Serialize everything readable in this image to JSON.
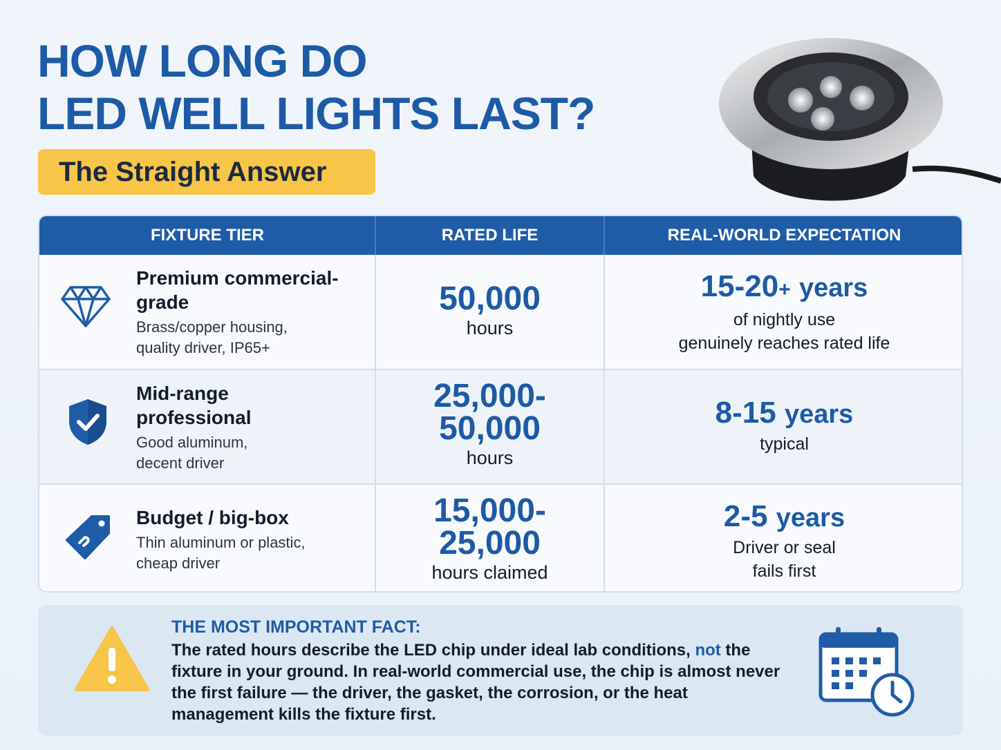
{
  "header": {
    "title_lines": [
      "HOW LONG DO",
      "LED WELL LIGHTS LAST?"
    ],
    "badge": "The Straight Answer"
  },
  "table": {
    "columns": [
      "FIXTURE TIER",
      "RATED LIFE",
      "REAL-WORLD EXPECTATION"
    ],
    "rows": [
      {
        "tier": "Premium commercial-grade",
        "description": "Brass/copper housing, quality driver, IP65+",
        "rated_lines": [
          "50,000"
        ],
        "rated_unit": "hours",
        "headline": "15-20",
        "headline_plus": "+",
        "headline_unit": "years",
        "notes": [
          "of nightly use",
          "genuinely reaches rated life"
        ]
      },
      {
        "tier": "Mid-range professional",
        "description": "Good aluminum, decent driver",
        "rated_lines": [
          "25,000-",
          "50,000"
        ],
        "rated_unit": "hours",
        "headline": "8-15",
        "headline_unit": "years",
        "notes": [
          "typical"
        ]
      },
      {
        "tier": "Budget / big-box",
        "description": "Thin aluminum or plastic, cheap driver",
        "rated_lines": [
          "15,000-",
          "25,000"
        ],
        "rated_unit": "hours claimed",
        "headline": "2-5",
        "headline_unit": "years",
        "notes": [
          "Driver or seal",
          "fails first"
        ]
      }
    ]
  },
  "fact": {
    "label": "THE MOST IMPORTANT FACT:",
    "text_parts": [
      "The rated hours describe the LED chip under ideal lab conditions, ",
      "not",
      " the fixture in your ground. In real-world commercial use, the chip is almost never the first failure — the driver, the gasket, the corrosion, or the heat management kills the fixture first."
    ]
  }
}
